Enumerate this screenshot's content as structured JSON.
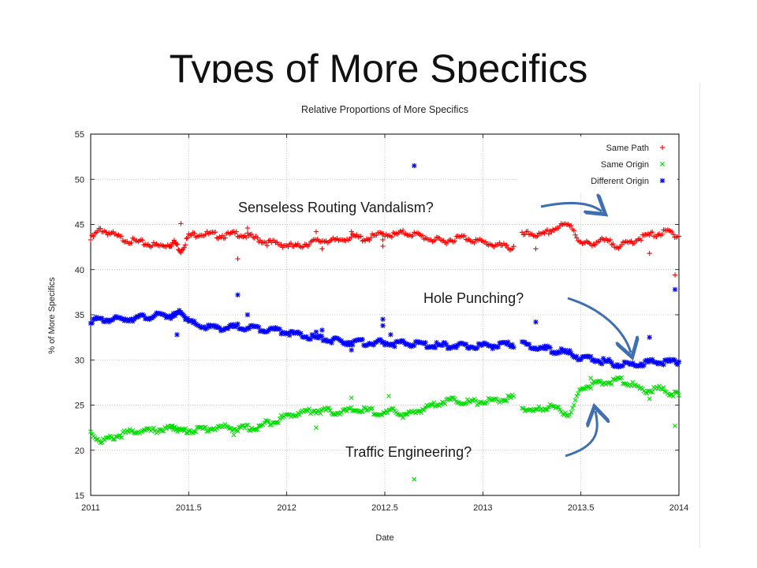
{
  "slide": {
    "title": "Types of More Specifics"
  },
  "annotations": [
    {
      "id": "vandalism",
      "text": "Senseless Routing Vandalism?"
    },
    {
      "id": "hole-punching",
      "text": "Hole Punching?"
    },
    {
      "id": "traffic-engineering",
      "text": "Traffic Engineering?"
    }
  ],
  "colors": {
    "same_path": "#ff0000",
    "same_origin": "#00dd00",
    "different_origin": "#0000ff",
    "arrow": "#3f6fb0"
  },
  "chart_data": {
    "type": "scatter",
    "title": "Relative Proportions of More Specifics",
    "xlabel": "Date",
    "ylabel": "% of More Specifics",
    "xlim": [
      2011,
      2014
    ],
    "ylim": [
      15,
      55
    ],
    "xticks": [
      "2011",
      "2011.5",
      "2012",
      "2012.5",
      "2013",
      "2013.5",
      "2014"
    ],
    "yticks": [
      "15",
      "20",
      "25",
      "30",
      "35",
      "40",
      "45",
      "50",
      "55"
    ],
    "grid": true,
    "legend_position": "top-right",
    "series": [
      {
        "name": "Same Path",
        "marker": "plus",
        "color": "#ff0000",
        "x": [
          2011.0,
          2011.05,
          2011.1,
          2011.15,
          2011.2,
          2011.25,
          2011.3,
          2011.35,
          2011.4,
          2011.43,
          2011.46,
          2011.5,
          2011.55,
          2011.6,
          2011.65,
          2011.7,
          2011.75,
          2011.8,
          2011.85,
          2011.9,
          2011.95,
          2012.0,
          2012.05,
          2012.1,
          2012.15,
          2012.2,
          2012.25,
          2012.3,
          2012.35,
          2012.4,
          2012.45,
          2012.5,
          2012.55,
          2012.6,
          2012.65,
          2012.7,
          2012.75,
          2012.8,
          2012.85,
          2012.9,
          2012.95,
          2013.0,
          2013.05,
          2013.1,
          2013.15,
          2013.2,
          2013.25,
          2013.3,
          2013.35,
          2013.4,
          2013.45,
          2013.5,
          2013.55,
          2013.6,
          2013.65,
          2013.7,
          2013.75,
          2013.8,
          2013.85,
          2013.9,
          2013.95,
          2014.0
        ],
        "y": [
          43.3,
          44.5,
          44.0,
          43.5,
          43.2,
          43.0,
          42.8,
          42.6,
          42.8,
          43.0,
          42.1,
          43.7,
          44.0,
          43.9,
          43.8,
          43.8,
          44.0,
          43.7,
          43.4,
          43.0,
          42.9,
          42.7,
          42.5,
          42.9,
          43.1,
          43.3,
          43.1,
          43.5,
          43.6,
          43.4,
          43.7,
          44.0,
          43.8,
          44.1,
          43.9,
          43.6,
          43.3,
          43.1,
          43.4,
          43.6,
          43.3,
          43.0,
          42.8,
          42.6,
          42.4,
          43.8,
          44.0,
          43.7,
          44.4,
          44.8,
          45.0,
          42.8,
          42.9,
          43.2,
          43.0,
          42.6,
          43.0,
          43.5,
          43.8,
          44.0,
          44.2,
          43.7
        ]
      },
      {
        "name": "Same Origin",
        "marker": "x",
        "color": "#00dd00",
        "x": [
          2011.0,
          2011.05,
          2011.1,
          2011.15,
          2011.2,
          2011.25,
          2011.3,
          2011.35,
          2011.4,
          2011.43,
          2011.46,
          2011.5,
          2011.55,
          2011.6,
          2011.65,
          2011.7,
          2011.75,
          2011.8,
          2011.85,
          2011.9,
          2011.95,
          2012.0,
          2012.05,
          2012.1,
          2012.15,
          2012.2,
          2012.25,
          2012.3,
          2012.35,
          2012.4,
          2012.45,
          2012.5,
          2012.55,
          2012.6,
          2012.65,
          2012.7,
          2012.75,
          2012.8,
          2012.85,
          2012.9,
          2012.95,
          2013.0,
          2013.05,
          2013.1,
          2013.15,
          2013.2,
          2013.25,
          2013.3,
          2013.35,
          2013.4,
          2013.45,
          2013.5,
          2013.55,
          2013.6,
          2013.65,
          2013.7,
          2013.75,
          2013.8,
          2013.85,
          2013.9,
          2013.95,
          2014.0
        ],
        "y": [
          22.0,
          21.0,
          21.3,
          21.7,
          22.0,
          22.2,
          22.1,
          22.3,
          22.4,
          22.6,
          22.1,
          22.2,
          22.3,
          22.4,
          22.5,
          22.6,
          22.3,
          22.5,
          22.4,
          23.1,
          23.3,
          23.8,
          24.1,
          24.3,
          24.4,
          24.4,
          24.2,
          24.3,
          24.5,
          24.4,
          24.3,
          24.0,
          24.4,
          23.8,
          24.2,
          24.6,
          25.1,
          25.4,
          25.6,
          25.4,
          25.3,
          25.4,
          25.5,
          25.6,
          25.8,
          24.7,
          24.3,
          24.6,
          24.9,
          24.3,
          24.0,
          27.0,
          27.2,
          27.4,
          27.6,
          27.8,
          27.4,
          26.7,
          26.6,
          26.8,
          26.4,
          26.1
        ]
      },
      {
        "name": "Different Origin",
        "marker": "asterisk",
        "color": "#0000ff",
        "x": [
          2011.0,
          2011.05,
          2011.1,
          2011.15,
          2011.2,
          2011.25,
          2011.3,
          2011.35,
          2011.4,
          2011.43,
          2011.46,
          2011.5,
          2011.55,
          2011.6,
          2011.65,
          2011.7,
          2011.75,
          2011.8,
          2011.85,
          2011.9,
          2011.95,
          2012.0,
          2012.05,
          2012.1,
          2012.15,
          2012.2,
          2012.25,
          2012.3,
          2012.35,
          2012.4,
          2012.45,
          2012.5,
          2012.55,
          2012.6,
          2012.65,
          2012.7,
          2012.75,
          2012.8,
          2012.85,
          2012.9,
          2012.95,
          2013.0,
          2013.05,
          2013.1,
          2013.15,
          2013.2,
          2013.25,
          2013.3,
          2013.35,
          2013.4,
          2013.45,
          2013.5,
          2013.55,
          2013.6,
          2013.65,
          2013.7,
          2013.75,
          2013.8,
          2013.85,
          2013.9,
          2013.95,
          2014.0
        ],
        "y": [
          34.4,
          34.4,
          34.5,
          34.5,
          34.6,
          34.7,
          34.8,
          34.9,
          34.9,
          34.8,
          35.4,
          34.2,
          33.8,
          33.6,
          33.6,
          33.5,
          33.7,
          33.6,
          33.5,
          33.4,
          33.3,
          33.1,
          32.8,
          32.6,
          32.4,
          32.3,
          32.1,
          32.0,
          32.0,
          31.9,
          31.9,
          31.9,
          31.8,
          31.8,
          31.8,
          31.7,
          31.6,
          31.6,
          31.6,
          31.5,
          31.5,
          31.6,
          31.6,
          31.6,
          31.7,
          31.7,
          31.5,
          31.3,
          31.1,
          30.9,
          30.7,
          30.2,
          30.1,
          29.9,
          29.7,
          29.5,
          29.5,
          29.6,
          29.7,
          29.8,
          29.8,
          29.8
        ]
      }
    ],
    "outliers": [
      {
        "series": "Same Path",
        "x": 2011.46,
        "y": 45.1
      },
      {
        "series": "Same Path",
        "x": 2011.75,
        "y": 41.2
      },
      {
        "series": "Same Path",
        "x": 2011.8,
        "y": 44.6
      },
      {
        "series": "Same Path",
        "x": 2012.15,
        "y": 44.2
      },
      {
        "series": "Same Path",
        "x": 2012.18,
        "y": 42.3
      },
      {
        "series": "Same Path",
        "x": 2012.33,
        "y": 44.2
      },
      {
        "series": "Same Path",
        "x": 2012.49,
        "y": 42.6
      },
      {
        "series": "Same Path",
        "x": 2012.49,
        "y": 43.3
      },
      {
        "series": "Same Path",
        "x": 2013.27,
        "y": 42.3
      },
      {
        "series": "Same Path",
        "x": 2013.85,
        "y": 41.8
      },
      {
        "series": "Same Path",
        "x": 2013.98,
        "y": 39.4
      },
      {
        "series": "Same Origin",
        "x": 2011.73,
        "y": 21.7
      },
      {
        "series": "Same Origin",
        "x": 2012.15,
        "y": 22.5
      },
      {
        "series": "Same Origin",
        "x": 2012.33,
        "y": 25.8
      },
      {
        "series": "Same Origin",
        "x": 2012.52,
        "y": 26.0
      },
      {
        "series": "Same Origin",
        "x": 2012.65,
        "y": 16.8
      },
      {
        "series": "Same Origin",
        "x": 2013.55,
        "y": 28.0
      },
      {
        "series": "Same Origin",
        "x": 2013.85,
        "y": 25.7
      },
      {
        "series": "Same Origin",
        "x": 2013.98,
        "y": 22.7
      },
      {
        "series": "Different Origin",
        "x": 2011.44,
        "y": 32.8
      },
      {
        "series": "Different Origin",
        "x": 2011.75,
        "y": 37.2
      },
      {
        "series": "Different Origin",
        "x": 2011.8,
        "y": 35.0
      },
      {
        "series": "Different Origin",
        "x": 2012.15,
        "y": 33.1
      },
      {
        "series": "Different Origin",
        "x": 2012.18,
        "y": 33.3
      },
      {
        "series": "Different Origin",
        "x": 2012.33,
        "y": 31.1
      },
      {
        "series": "Different Origin",
        "x": 2012.49,
        "y": 34.5
      },
      {
        "series": "Different Origin",
        "x": 2012.49,
        "y": 33.8
      },
      {
        "series": "Different Origin",
        "x": 2012.53,
        "y": 32.8
      },
      {
        "series": "Different Origin",
        "x": 2012.65,
        "y": 51.5
      },
      {
        "series": "Different Origin",
        "x": 2013.27,
        "y": 34.2
      },
      {
        "series": "Different Origin",
        "x": 2013.85,
        "y": 32.5
      },
      {
        "series": "Different Origin",
        "x": 2013.98,
        "y": 37.8
      }
    ]
  }
}
